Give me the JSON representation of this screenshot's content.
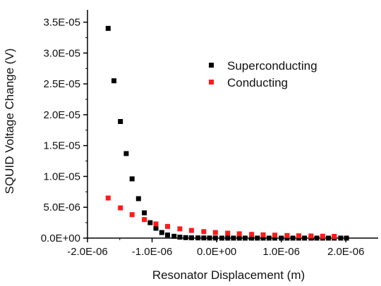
{
  "chart_data": {
    "type": "scatter",
    "xlabel": "Resonator Displacement (m)",
    "ylabel": "SQUID Voltage Change (V)",
    "xlim": [
      -2e-06,
      2.5e-06
    ],
    "ylim": [
      0,
      3.7e-05
    ],
    "x_ticks": [
      -2e-06,
      -1e-06,
      0.0,
      1e-06,
      2e-06
    ],
    "x_tick_labels": [
      "-2.0E-06",
      "-1.0E-06",
      "0.0E+00",
      "1.0E-06",
      "2.0E-06"
    ],
    "y_ticks": [
      0,
      5e-06,
      1e-05,
      1.5e-05,
      2e-05,
      2.5e-05,
      3e-05,
      3.5e-05
    ],
    "y_tick_labels": [
      "0.0E+00",
      "5.0E-06",
      "1.0E-05",
      "1.5E-05",
      "2.0E-05",
      "2.5E-05",
      "3.0E-05",
      "3.5E-05"
    ],
    "legend_position": "upper-right",
    "grid": false,
    "series": [
      {
        "name": "Superconducting",
        "color": "#000000",
        "marker": "square",
        "points": [
          [
            -1.68e-06,
            3.4e-05
          ],
          [
            -1.59e-06,
            2.55e-05
          ],
          [
            -1.49e-06,
            1.89e-05
          ],
          [
            -1.4e-06,
            1.37e-05
          ],
          [
            -1.31e-06,
            9.6e-06
          ],
          [
            -1.21e-06,
            6.4e-06
          ],
          [
            -1.12e-06,
            4.1e-06
          ],
          [
            -1.03e-06,
            2.5e-06
          ],
          [
            -9.4e-07,
            1.6e-06
          ],
          [
            -8.5e-07,
            9e-07
          ],
          [
            -7.6e-07,
            5e-07
          ],
          [
            -6.6e-07,
            3e-07
          ],
          [
            -5.7e-07,
            1.5e-07
          ],
          [
            -4.8e-07,
            8e-08
          ],
          [
            -3.9e-07,
            5e-08
          ],
          [
            -2.9e-07,
            3e-08
          ],
          [
            -2e-07,
            2e-08
          ],
          [
            -1.1e-07,
            1e-08
          ],
          [
            -2e-08,
            1e-08
          ],
          [
            8e-08,
            0
          ],
          [
            1.7e-07,
            0
          ],
          [
            2.6e-07,
            0
          ],
          [
            3.5e-07,
            0
          ],
          [
            4.4e-07,
            0
          ],
          [
            5.4e-07,
            0
          ],
          [
            6.3e-07,
            0
          ],
          [
            7.2e-07,
            0
          ],
          [
            8.1e-07,
            0
          ],
          [
            9e-07,
            0
          ],
          [
            1e-06,
            0
          ],
          [
            1.09e-06,
            0
          ],
          [
            1.18e-06,
            0
          ],
          [
            1.27e-06,
            0
          ],
          [
            1.36e-06,
            0
          ],
          [
            1.46e-06,
            0
          ],
          [
            1.55e-06,
            0
          ],
          [
            1.64e-06,
            0
          ],
          [
            1.73e-06,
            0
          ],
          [
            1.82e-06,
            0
          ],
          [
            1.92e-06,
            0
          ],
          [
            2.01e-06,
            0
          ]
        ]
      },
      {
        "name": "Conducting",
        "color": "#ff1a1a",
        "marker": "square",
        "points": [
          [
            -1.68e-06,
            6.5e-06
          ],
          [
            -1.49e-06,
            4.9e-06
          ],
          [
            -1.31e-06,
            3.8e-06
          ],
          [
            -1.12e-06,
            3e-06
          ],
          [
            -9.4e-07,
            2.3e-06
          ],
          [
            -7.6e-07,
            1.9e-06
          ],
          [
            -5.7e-07,
            1.5e-06
          ],
          [
            -3.9e-07,
            1.25e-06
          ],
          [
            -2e-07,
            1.05e-06
          ],
          [
            -2e-08,
            9e-07
          ],
          [
            1.7e-07,
            8e-07
          ],
          [
            3.5e-07,
            7e-07
          ],
          [
            5.4e-07,
            6e-07
          ],
          [
            7.2e-07,
            5.3e-07
          ],
          [
            9e-07,
            4.8e-07
          ],
          [
            1.09e-06,
            4.2e-07
          ],
          [
            1.27e-06,
            3.8e-07
          ],
          [
            1.46e-06,
            3.4e-07
          ],
          [
            1.64e-06,
            3.1e-07
          ],
          [
            1.82e-06,
            2.8e-07
          ]
        ]
      }
    ]
  }
}
